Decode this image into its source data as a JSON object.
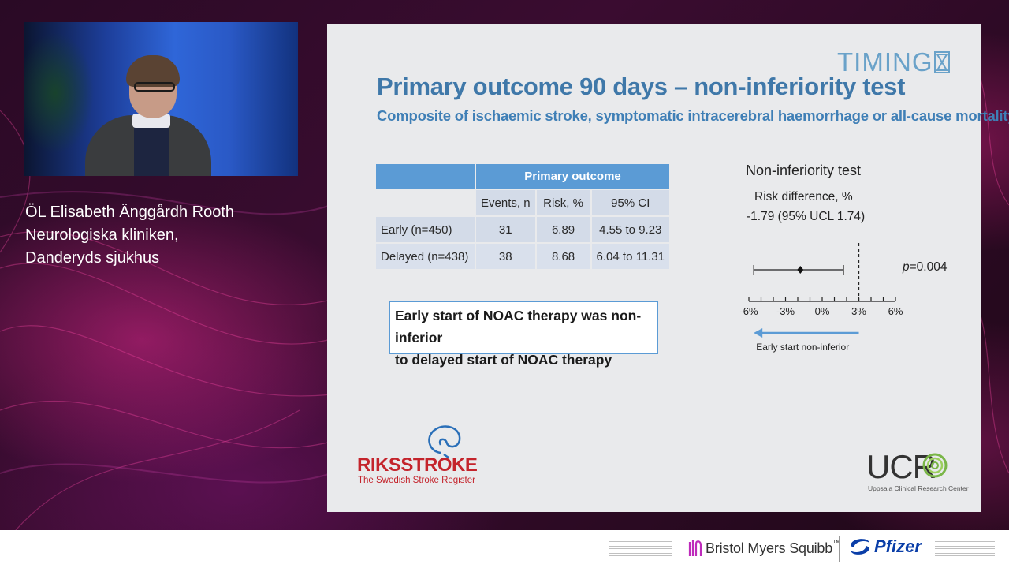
{
  "speaker": {
    "name": "ÖL Elisabeth Änggårdh Rooth",
    "department": "Neurologiska kliniken,",
    "hospital": "Danderyds sjukhus"
  },
  "slide": {
    "logo": "TIMING",
    "title": "Primary outcome 90 days – non-inferiority test",
    "subtitle": "Composite of ischaemic stroke, symptomatic intracerebral haemorrhage or all-cause mortality",
    "table": {
      "group_header": "Primary outcome",
      "columns": [
        "Events, n",
        "Risk, %",
        "95% CI"
      ],
      "rows": [
        {
          "label": "Early (n=450)",
          "events": "31",
          "risk": "6.89",
          "ci": "4.55 to 9.23"
        },
        {
          "label": "Delayed (n=438)",
          "events": "38",
          "risk": "8.68",
          "ci": "6.04 to 11.31"
        }
      ]
    },
    "conclusion": {
      "line1": "Early start of NOAC therapy was non-inferior",
      "line2": "to delayed start of NOAC therapy"
    },
    "forest_plot": {
      "title": "Non-inferiority test",
      "measure_label": "Risk difference, %",
      "estimate_text": "-1.79 (95% UCL 1.74)",
      "p_label": "p",
      "p_value": "=0.004",
      "axis_ticks": [
        "-6%",
        "-3%",
        "0%",
        "3%",
        "6%"
      ],
      "arrow_label": "Early start non-inferior"
    },
    "riksstroke": {
      "name": "RIKSSTROKE",
      "tagline": "The Swedish Stroke Register"
    },
    "ucr": {
      "name": "UCR",
      "tagline": "Uppsala Clinical Research Center"
    }
  },
  "chart_data": {
    "type": "scatter",
    "title": "Non-inferiority test",
    "xlabel": "Risk difference, %",
    "ylabel": "",
    "xlim": [
      -6,
      6
    ],
    "x_ticks": [
      -6,
      -5,
      -4,
      -3,
      -2,
      -1,
      0,
      1,
      2,
      3,
      4,
      5,
      6
    ],
    "x_tick_labels": [
      "-6%",
      "-3%",
      "0%",
      "3%",
      "6%"
    ],
    "point_estimate": -1.79,
    "ci_lower": -5.6,
    "ci_upper": 1.74,
    "margin": 3,
    "p_value": 0.004,
    "annotation": "Early start non-inferior",
    "grid": false
  },
  "footer": {
    "sponsor1": "Bristol Myers Squibb",
    "sponsor1_mark": "™",
    "sponsor2": "Pfizer"
  },
  "colors": {
    "slide_title": "#3f78a9",
    "table_header": "#5b9bd5",
    "riksstroke_red": "#c4242c",
    "pfizer_blue": "#0a3ea8"
  }
}
